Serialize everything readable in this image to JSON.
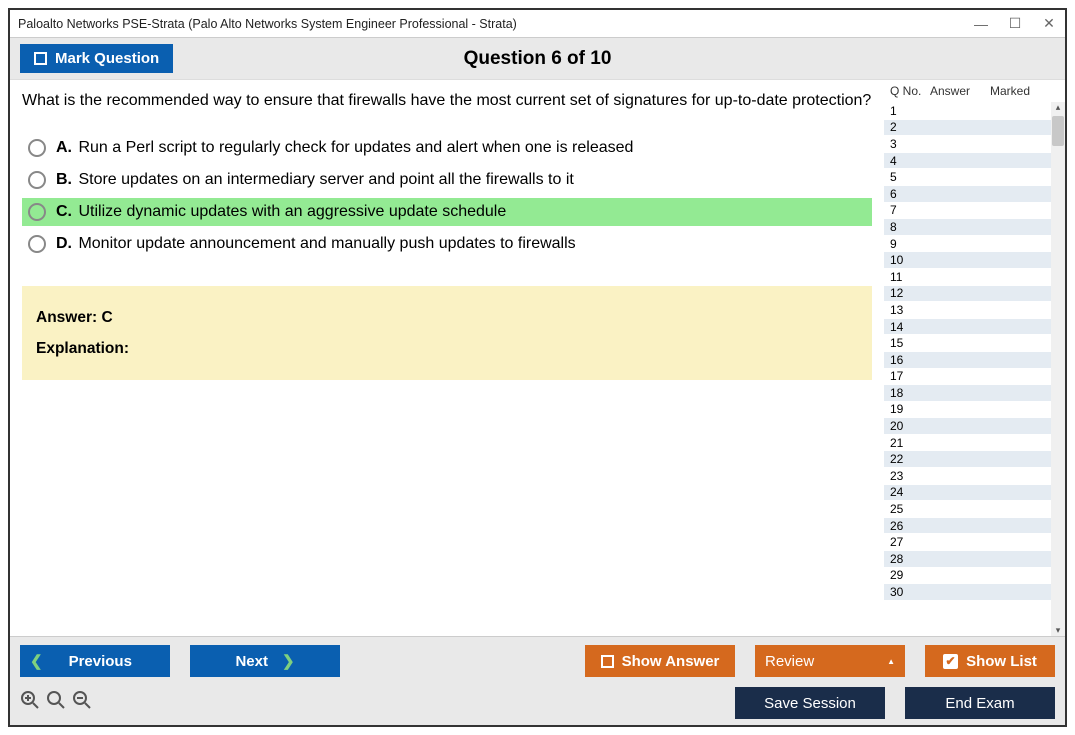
{
  "window": {
    "title": "Paloalto Networks PSE-Strata (Palo Alto Networks System Engineer Professional - Strata)"
  },
  "header": {
    "mark_label": "Mark Question",
    "question_counter": "Question 6 of 10"
  },
  "question": {
    "text": "What is the recommended way to ensure that firewalls have the most current set of signatures for up-to-date protection?",
    "choices": [
      {
        "letter": "A.",
        "text": "Run a Perl script to regularly check for updates and alert when one is released",
        "selected": false
      },
      {
        "letter": "B.",
        "text": "Store updates on an intermediary server and point all the firewalls to it",
        "selected": false
      },
      {
        "letter": "C.",
        "text": "Utilize dynamic updates with an aggressive update schedule",
        "selected": true
      },
      {
        "letter": "D.",
        "text": "Monitor update announcement and manually push updates to firewalls",
        "selected": false
      }
    ],
    "answer_label": "Answer:",
    "answer_value": "C",
    "explanation_label": "Explanation:",
    "explanation_text": ""
  },
  "sidebar": {
    "headers": {
      "qno": "Q No.",
      "answer": "Answer",
      "marked": "Marked"
    },
    "row_count": 30,
    "colors": {
      "even_bg": "#e4ebf2",
      "odd_bg": "#ffffff",
      "scroll_bg": "#f0f0f0",
      "thumb": "#c8c8c8"
    }
  },
  "footer": {
    "previous": "Previous",
    "next": "Next",
    "show_answer": "Show Answer",
    "review": "Review",
    "show_list": "Show List",
    "save_session": "Save Session",
    "end_exam": "End Exam"
  },
  "colors": {
    "blue": "#0a5fb0",
    "orange": "#d5691e",
    "dark": "#1a2d4a",
    "highlight_green": "#93ea93",
    "answer_bg": "#faf2c4",
    "strip_bg": "#e9e9e9",
    "chevron_green": "#7fd07f"
  }
}
